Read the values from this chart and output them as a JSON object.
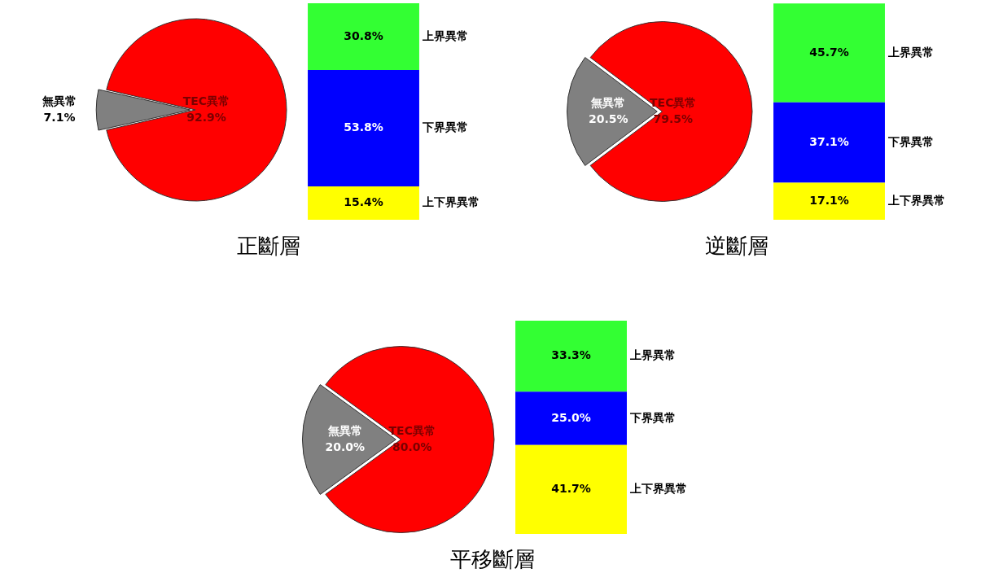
{
  "chart_data": [
    {
      "type": "pie",
      "title": "正斷層",
      "categories": [
        "無異常",
        "TEC異常"
      ],
      "values": [
        7.1,
        92.9
      ],
      "value_labels": [
        "7.1%",
        "92.9%"
      ],
      "colors": [
        "#808080",
        "#ff0000"
      ]
    },
    {
      "type": "bar",
      "stacked": true,
      "categories": [
        null
      ],
      "series": [
        {
          "name": "上下界異常",
          "color": "#ffff00",
          "values": [
            15.4
          ],
          "value_labels": [
            "15.4%"
          ]
        },
        {
          "name": "下界異常",
          "color": "#0000ff",
          "values": [
            53.8
          ],
          "value_labels": [
            "53.8%"
          ]
        },
        {
          "name": "上界異常",
          "color": "#33ff33",
          "values": [
            30.8
          ],
          "value_labels": [
            "30.8%"
          ]
        }
      ]
    },
    {
      "type": "pie",
      "title": "逆斷層",
      "categories": [
        "無異常",
        "TEC異常"
      ],
      "values": [
        20.5,
        79.5
      ],
      "value_labels": [
        "20.5%",
        "79.5%"
      ],
      "colors": [
        "#808080",
        "#ff0000"
      ]
    },
    {
      "type": "bar",
      "stacked": true,
      "categories": [
        null
      ],
      "series": [
        {
          "name": "上下界異常",
          "color": "#ffff00",
          "values": [
            17.1
          ],
          "value_labels": [
            "17.1%"
          ]
        },
        {
          "name": "下界異常",
          "color": "#0000ff",
          "values": [
            37.1
          ],
          "value_labels": [
            "37.1%"
          ]
        },
        {
          "name": "上界異常",
          "color": "#33ff33",
          "values": [
            45.7
          ],
          "value_labels": [
            "45.7%"
          ]
        }
      ]
    },
    {
      "type": "pie",
      "title": "平移斷層",
      "categories": [
        "無異常",
        "TEC異常"
      ],
      "values": [
        20.0,
        80.0
      ],
      "value_labels": [
        "20.0%",
        "80.0%"
      ],
      "colors": [
        "#808080",
        "#ff0000"
      ]
    },
    {
      "type": "bar",
      "stacked": true,
      "categories": [
        null
      ],
      "series": [
        {
          "name": "上下界異常",
          "color": "#ffff00",
          "values": [
            41.7
          ],
          "value_labels": [
            "41.7%"
          ]
        },
        {
          "name": "下界異常",
          "color": "#0000ff",
          "values": [
            25.0
          ],
          "value_labels": [
            "25.0%"
          ]
        },
        {
          "name": "上界異常",
          "color": "#33ff33",
          "values": [
            33.3
          ],
          "value_labels": [
            "33.3%"
          ]
        }
      ]
    }
  ]
}
